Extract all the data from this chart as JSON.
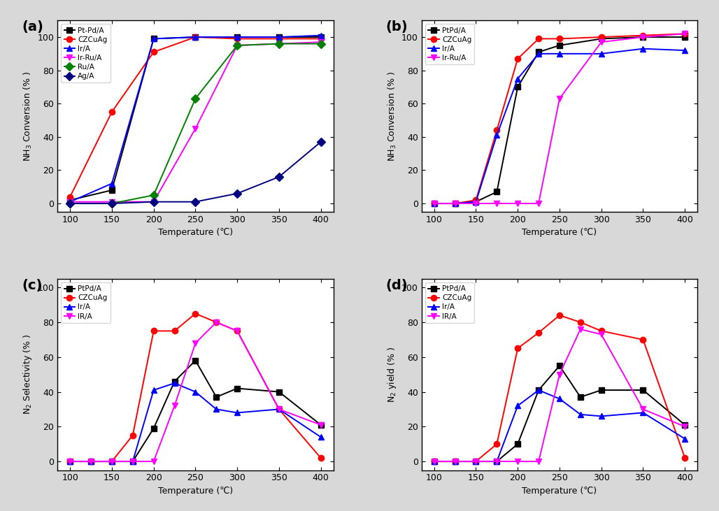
{
  "temp_a": [
    100,
    150,
    200,
    250,
    300,
    350,
    400
  ],
  "subplot_a": {
    "title": "(a)",
    "ylabel": "NH$_3$ Conversion (% )",
    "xlabel": "Temperature (℃)",
    "ylim": [
      -5,
      110
    ],
    "yticks": [
      0,
      20,
      40,
      60,
      80,
      100
    ],
    "series": [
      {
        "label": "Pt-Pd/A",
        "color": "#000000",
        "marker": "s",
        "data": [
          2,
          8,
          99,
          100,
          100,
          100,
          100
        ]
      },
      {
        "label": "CZCuAg",
        "color": "#ff0000",
        "marker": "o",
        "data": [
          4,
          55,
          91,
          100,
          99,
          99,
          99
        ]
      },
      {
        "label": "Ir/A",
        "color": "#0000ff",
        "marker": "^",
        "data": [
          1,
          12,
          99,
          100,
          100,
          100,
          101
        ]
      },
      {
        "label": "Ir-Ru/A",
        "color": "#ff00ff",
        "marker": "v",
        "data": [
          1,
          1,
          1,
          45,
          95,
          96,
          97
        ]
      },
      {
        "label": "Ru/A",
        "color": "#008000",
        "marker": "D",
        "data": [
          0,
          0,
          5,
          63,
          95,
          96,
          96
        ]
      },
      {
        "label": "Ag/A",
        "color": "#000080",
        "marker": "D",
        "data": [
          0,
          0,
          1,
          1,
          6,
          16,
          37
        ]
      }
    ]
  },
  "temp_b": [
    100,
    125,
    150,
    175,
    200,
    225,
    250,
    300,
    350,
    400
  ],
  "subplot_b": {
    "title": "(b)",
    "ylabel": "NH$_3$ Conversion (% )",
    "xlabel": "Temperature (℃)",
    "ylim": [
      -5,
      110
    ],
    "yticks": [
      0,
      20,
      40,
      60,
      80,
      100
    ],
    "series": [
      {
        "label": "PtPd/A",
        "color": "#000000",
        "marker": "s",
        "data": [
          0,
          0,
          1,
          7,
          70,
          91,
          95,
          99,
          100,
          100
        ]
      },
      {
        "label": "CZCuAg",
        "color": "#ff0000",
        "marker": "o",
        "data": [
          0,
          0,
          2,
          44,
          87,
          99,
          99,
          100,
          101,
          102
        ]
      },
      {
        "label": "Ir/A",
        "color": "#0000ff",
        "marker": "^",
        "data": [
          0,
          0,
          1,
          41,
          75,
          90,
          90,
          90,
          93,
          92
        ]
      },
      {
        "label": "Ir-Ru/A",
        "color": "#ff00ff",
        "marker": "v",
        "data": [
          0,
          0,
          0,
          0,
          0,
          0,
          63,
          97,
          100,
          102
        ]
      }
    ]
  },
  "temp_cd": [
    100,
    125,
    150,
    175,
    200,
    225,
    250,
    275,
    300,
    350,
    400
  ],
  "subplot_c": {
    "title": "(c)",
    "ylabel": "N$_2$ Selectivity (% )",
    "xlabel": "Temperature (℃)",
    "ylim": [
      -5,
      105
    ],
    "yticks": [
      0,
      20,
      40,
      60,
      80,
      100
    ],
    "series": [
      {
        "label": "PtPd/A",
        "color": "#000000",
        "marker": "s",
        "data": [
          0,
          0,
          0,
          0,
          19,
          46,
          58,
          37,
          42,
          40,
          21
        ]
      },
      {
        "label": "CZCuAg",
        "color": "#ff0000",
        "marker": "o",
        "data": [
          0,
          0,
          0,
          15,
          75,
          75,
          85,
          80,
          75,
          30,
          2
        ]
      },
      {
        "label": "Ir/A",
        "color": "#0000ff",
        "marker": "^",
        "data": [
          0,
          0,
          0,
          0,
          41,
          45,
          40,
          30,
          28,
          30,
          14
        ]
      },
      {
        "label": "IR/A",
        "color": "#ff00ff",
        "marker": "v",
        "data": [
          0,
          0,
          0,
          0,
          0,
          32,
          68,
          80,
          75,
          30,
          21
        ]
      }
    ]
  },
  "subplot_d": {
    "title": "(d)",
    "ylabel": "N$_2$ yield (% )",
    "xlabel": "Temperature (℃)",
    "ylim": [
      -5,
      105
    ],
    "yticks": [
      0,
      20,
      40,
      60,
      80,
      100
    ],
    "series": [
      {
        "label": "PtPd/A",
        "color": "#000000",
        "marker": "s",
        "data": [
          0,
          0,
          0,
          0,
          10,
          41,
          55,
          37,
          41,
          41,
          21
        ]
      },
      {
        "label": "CZCuAg",
        "color": "#ff0000",
        "marker": "o",
        "data": [
          0,
          0,
          0,
          10,
          65,
          74,
          84,
          80,
          75,
          70,
          2
        ]
      },
      {
        "label": "Ir/A",
        "color": "#0000ff",
        "marker": "^",
        "data": [
          0,
          0,
          0,
          0,
          32,
          41,
          36,
          27,
          26,
          28,
          13
        ]
      },
      {
        "label": "IR/A",
        "color": "#ff00ff",
        "marker": "v",
        "data": [
          0,
          0,
          0,
          0,
          0,
          0,
          50,
          76,
          73,
          30,
          20
        ]
      }
    ]
  },
  "bg_color": "#ffffff",
  "fig_bg": "#d8d8d8"
}
